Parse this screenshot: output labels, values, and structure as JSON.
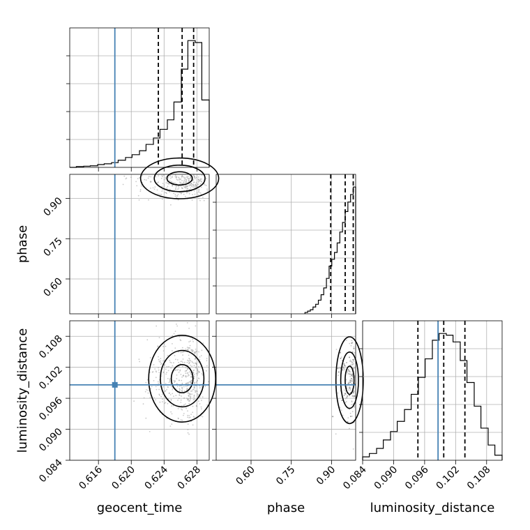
{
  "chart_data": {
    "type": "corner",
    "parameters": [
      "geocent_time",
      "phase",
      "luminosity_distance"
    ],
    "axes": {
      "geocent_time": {
        "range": [
          0.6125,
          0.6295
        ],
        "ticks": [
          0.616,
          0.62,
          0.624,
          0.628
        ],
        "tick_labels": [
          "0.616",
          "0.620",
          "0.624",
          "0.628"
        ]
      },
      "phase": {
        "range": [
          0.47,
          0.99
        ],
        "ticks": [
          0.6,
          0.75,
          0.9
        ],
        "tick_labels": [
          "0.60",
          "0.75",
          "0.90"
        ]
      },
      "luminosity_distance": {
        "range": [
          0.084,
          0.111
        ],
        "ticks": [
          0.084,
          0.09,
          0.096,
          0.102,
          0.108
        ],
        "tick_labels": [
          "0.084",
          "0.090",
          "0.096",
          "0.102",
          "0.108"
        ]
      }
    },
    "truths": {
      "geocent_time": 0.618,
      "luminosity_distance": 0.0986
    },
    "quantiles": {
      "geocent_time": [
        0.6233,
        0.6262,
        0.6276
      ],
      "phase": [
        0.897,
        0.951,
        0.981
      ],
      "luminosity_distance": [
        0.0947,
        0.0997,
        0.1038
      ]
    },
    "histograms": {
      "geocent_time": {
        "edges": [
          0.6125,
          0.6133,
          0.6142,
          0.615,
          0.6159,
          0.6167,
          0.6176,
          0.6184,
          0.6193,
          0.6201,
          0.621,
          0.6218,
          0.6227,
          0.6235,
          0.6244,
          0.6252,
          0.6261,
          0.6269,
          0.6278,
          0.6286,
          0.6295
        ],
        "counts": [
          0,
          2,
          3,
          4,
          7,
          9,
          12,
          18,
          25,
          32,
          42,
          58,
          74,
          96,
          120,
          165,
          248,
          320,
          315,
          170
        ]
      },
      "phase": {
        "edges": [
          0.801,
          0.811,
          0.821,
          0.831,
          0.841,
          0.851,
          0.861,
          0.871,
          0.881,
          0.891,
          0.901,
          0.911,
          0.921,
          0.931,
          0.941,
          0.951,
          0.961,
          0.971,
          0.981,
          0.99
        ],
        "counts": [
          2,
          4,
          6,
          10,
          14,
          20,
          28,
          38,
          52,
          70,
          80,
          90,
          104,
          120,
          134,
          150,
          164,
          175,
          186
        ]
      },
      "luminosity_distance": {
        "edges": [
          0.084,
          0.0853,
          0.0867,
          0.088,
          0.0894,
          0.0907,
          0.0921,
          0.0934,
          0.0948,
          0.0961,
          0.0975,
          0.0988,
          0.1002,
          0.1015,
          0.1029,
          0.1042,
          0.1056,
          0.1069,
          0.1083,
          0.1096,
          0.111
        ],
        "counts": [
          4,
          8,
          14,
          24,
          34,
          46,
          60,
          78,
          98,
          120,
          142,
          150,
          148,
          140,
          118,
          92,
          64,
          38,
          18,
          6
        ]
      }
    },
    "scatter_2d": {
      "geocent_time_vs_phase": {
        "x": "geocent_time",
        "y": "phase",
        "center": [
          0.6266,
          0.975
        ],
        "spread": [
          0.0028,
          0.038
        ]
      },
      "geocent_time_vs_luminosity_distance": {
        "x": "geocent_time",
        "y": "luminosity_distance",
        "center": [
          0.6268,
          0.0998
        ],
        "spread": [
          0.0024,
          0.0042
        ]
      },
      "phase_vs_luminosity_distance": {
        "x": "phase",
        "y": "luminosity_distance",
        "center": [
          0.975,
          0.0995
        ],
        "spread": [
          0.03,
          0.0042
        ]
      }
    },
    "grid": true,
    "contour_levels": 3,
    "colors": {
      "truth": "#4682b4",
      "contour": "#000000",
      "samples": "#9a9a9a"
    }
  }
}
